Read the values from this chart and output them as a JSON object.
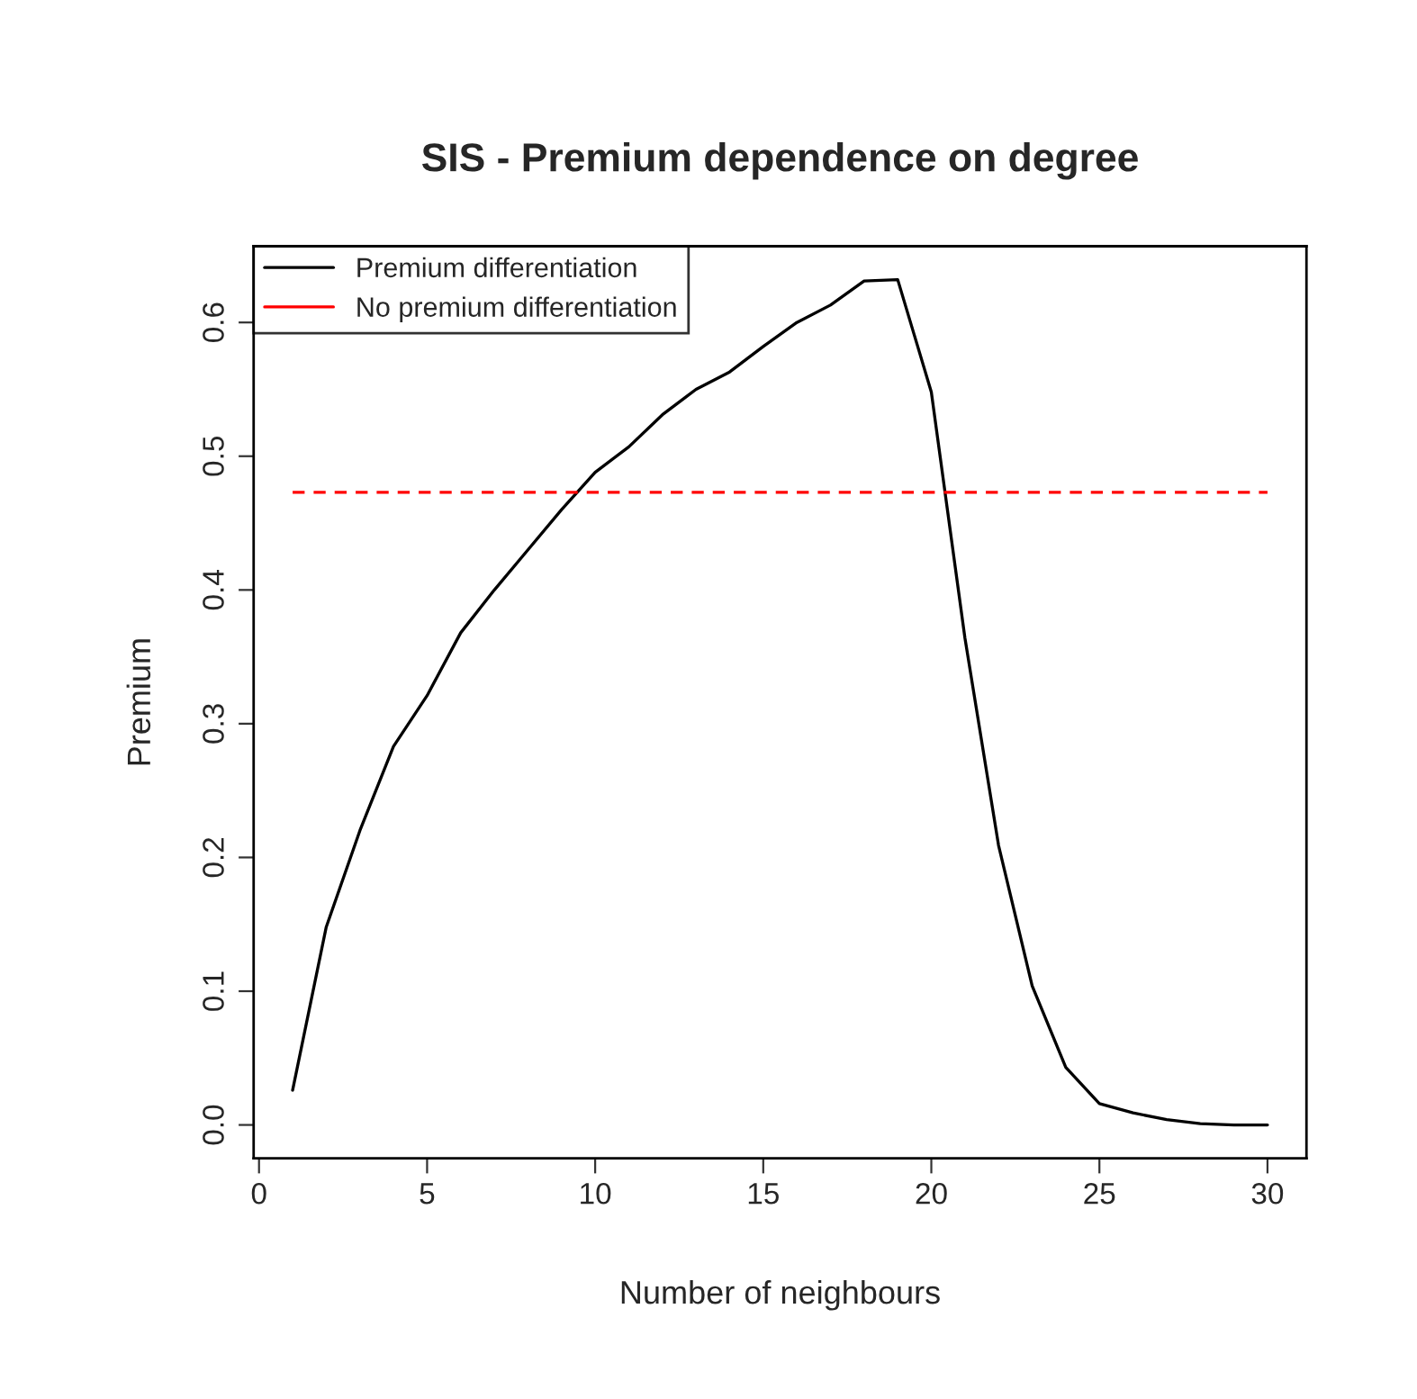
{
  "chart_data": {
    "type": "line",
    "title": "SIS - Premium dependence on degree",
    "xlabel": "Number of neighbours",
    "ylabel": "Premium",
    "series": [
      {
        "name": "Premium differentiation",
        "color": "#000000",
        "line_style": "solid",
        "x": [
          1,
          2,
          3,
          4,
          5,
          6,
          7,
          8,
          9,
          10,
          11,
          12,
          13,
          14,
          15,
          16,
          17,
          18,
          19,
          20,
          21,
          22,
          23,
          24,
          25,
          26,
          27,
          28,
          29,
          30
        ],
        "values": [
          0.026,
          0.148,
          0.22,
          0.283,
          0.321,
          0.368,
          0.4,
          0.43,
          0.46,
          0.488,
          0.507,
          0.531,
          0.55,
          0.563,
          0.582,
          0.6,
          0.613,
          0.631,
          0.632,
          0.548,
          0.364,
          0.209,
          0.104,
          0.043,
          0.016,
          0.009,
          0.004,
          0.001,
          0.0,
          0.0
        ]
      },
      {
        "name": "No premium differentiation",
        "color": "#ff0000",
        "line_style": "dashed",
        "x": [
          1,
          30
        ],
        "values": [
          0.473,
          0.473
        ]
      }
    ],
    "xlim": [
      -0.16,
      31.16
    ],
    "ylim": [
      -0.025,
      0.657
    ],
    "xticks": [
      0,
      5,
      10,
      15,
      20,
      25,
      30
    ],
    "yticks": [
      {
        "value": 0,
        "label": "0.0"
      },
      0.1,
      0.2,
      0.3,
      0.4,
      0.5,
      0.6
    ],
    "grid": false,
    "legend": "top left"
  }
}
